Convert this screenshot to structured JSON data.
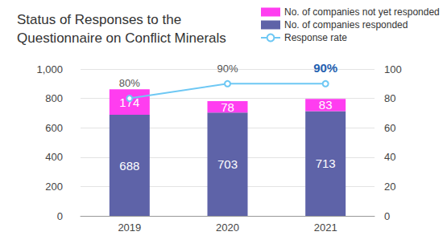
{
  "chart_data": {
    "type": "bar",
    "title": "Status of Responses to the\nQuestionnaire on Conflict Minerals",
    "categories": [
      "2019",
      "2020",
      "2021"
    ],
    "stacked": true,
    "data_labels": true,
    "grid": true,
    "legend": "top-right",
    "ylim": [
      0,
      1000
    ],
    "yticks": [
      0,
      200,
      400,
      600,
      800,
      1000
    ],
    "y2lim": [
      0,
      100
    ],
    "y2ticks": [
      0,
      20,
      40,
      60,
      80,
      100
    ],
    "series": [
      {
        "name": "No. of companies not yet responded",
        "type": "bar",
        "color": "#ff3df0",
        "values": [
          174,
          78,
          83
        ]
      },
      {
        "name": "No. of companies responded",
        "type": "bar",
        "color": "#5e63a8",
        "values": [
          688,
          703,
          713
        ]
      },
      {
        "name": "Response rate",
        "type": "line",
        "axis": "y2",
        "color": "#6ec8f4",
        "marker": "circle",
        "values": [
          80,
          90,
          90
        ],
        "value_labels": [
          "80%",
          "90%",
          "90%"
        ]
      }
    ]
  }
}
